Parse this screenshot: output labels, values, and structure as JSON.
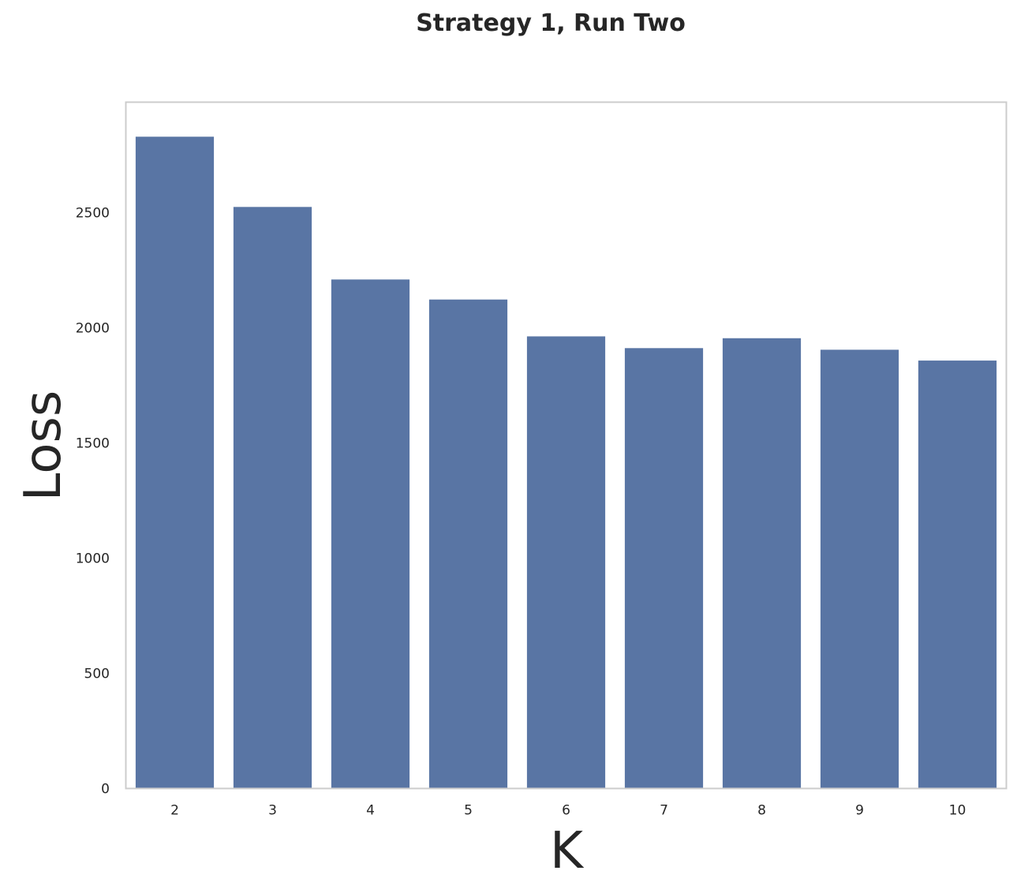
{
  "chart_data": {
    "type": "bar",
    "title": "Strategy 1, Run Two",
    "xlabel": "K",
    "ylabel": "Loss",
    "categories": [
      "2",
      "3",
      "4",
      "5",
      "6",
      "7",
      "8",
      "9",
      "10"
    ],
    "values": [
      2830,
      2525,
      2210,
      2123,
      1963,
      1912,
      1955,
      1905,
      1858
    ],
    "ylim": [
      0,
      2980
    ],
    "yticks": [
      0,
      500,
      1000,
      1500,
      2000,
      2500
    ],
    "ytick_labels": [
      "0",
      "500",
      "1000",
      "1500",
      "2000",
      "2500"
    ],
    "grid": false,
    "legend": "none",
    "colors": {
      "bar": "#5975a4",
      "frame": "#cccccc",
      "text": "#262626"
    }
  }
}
